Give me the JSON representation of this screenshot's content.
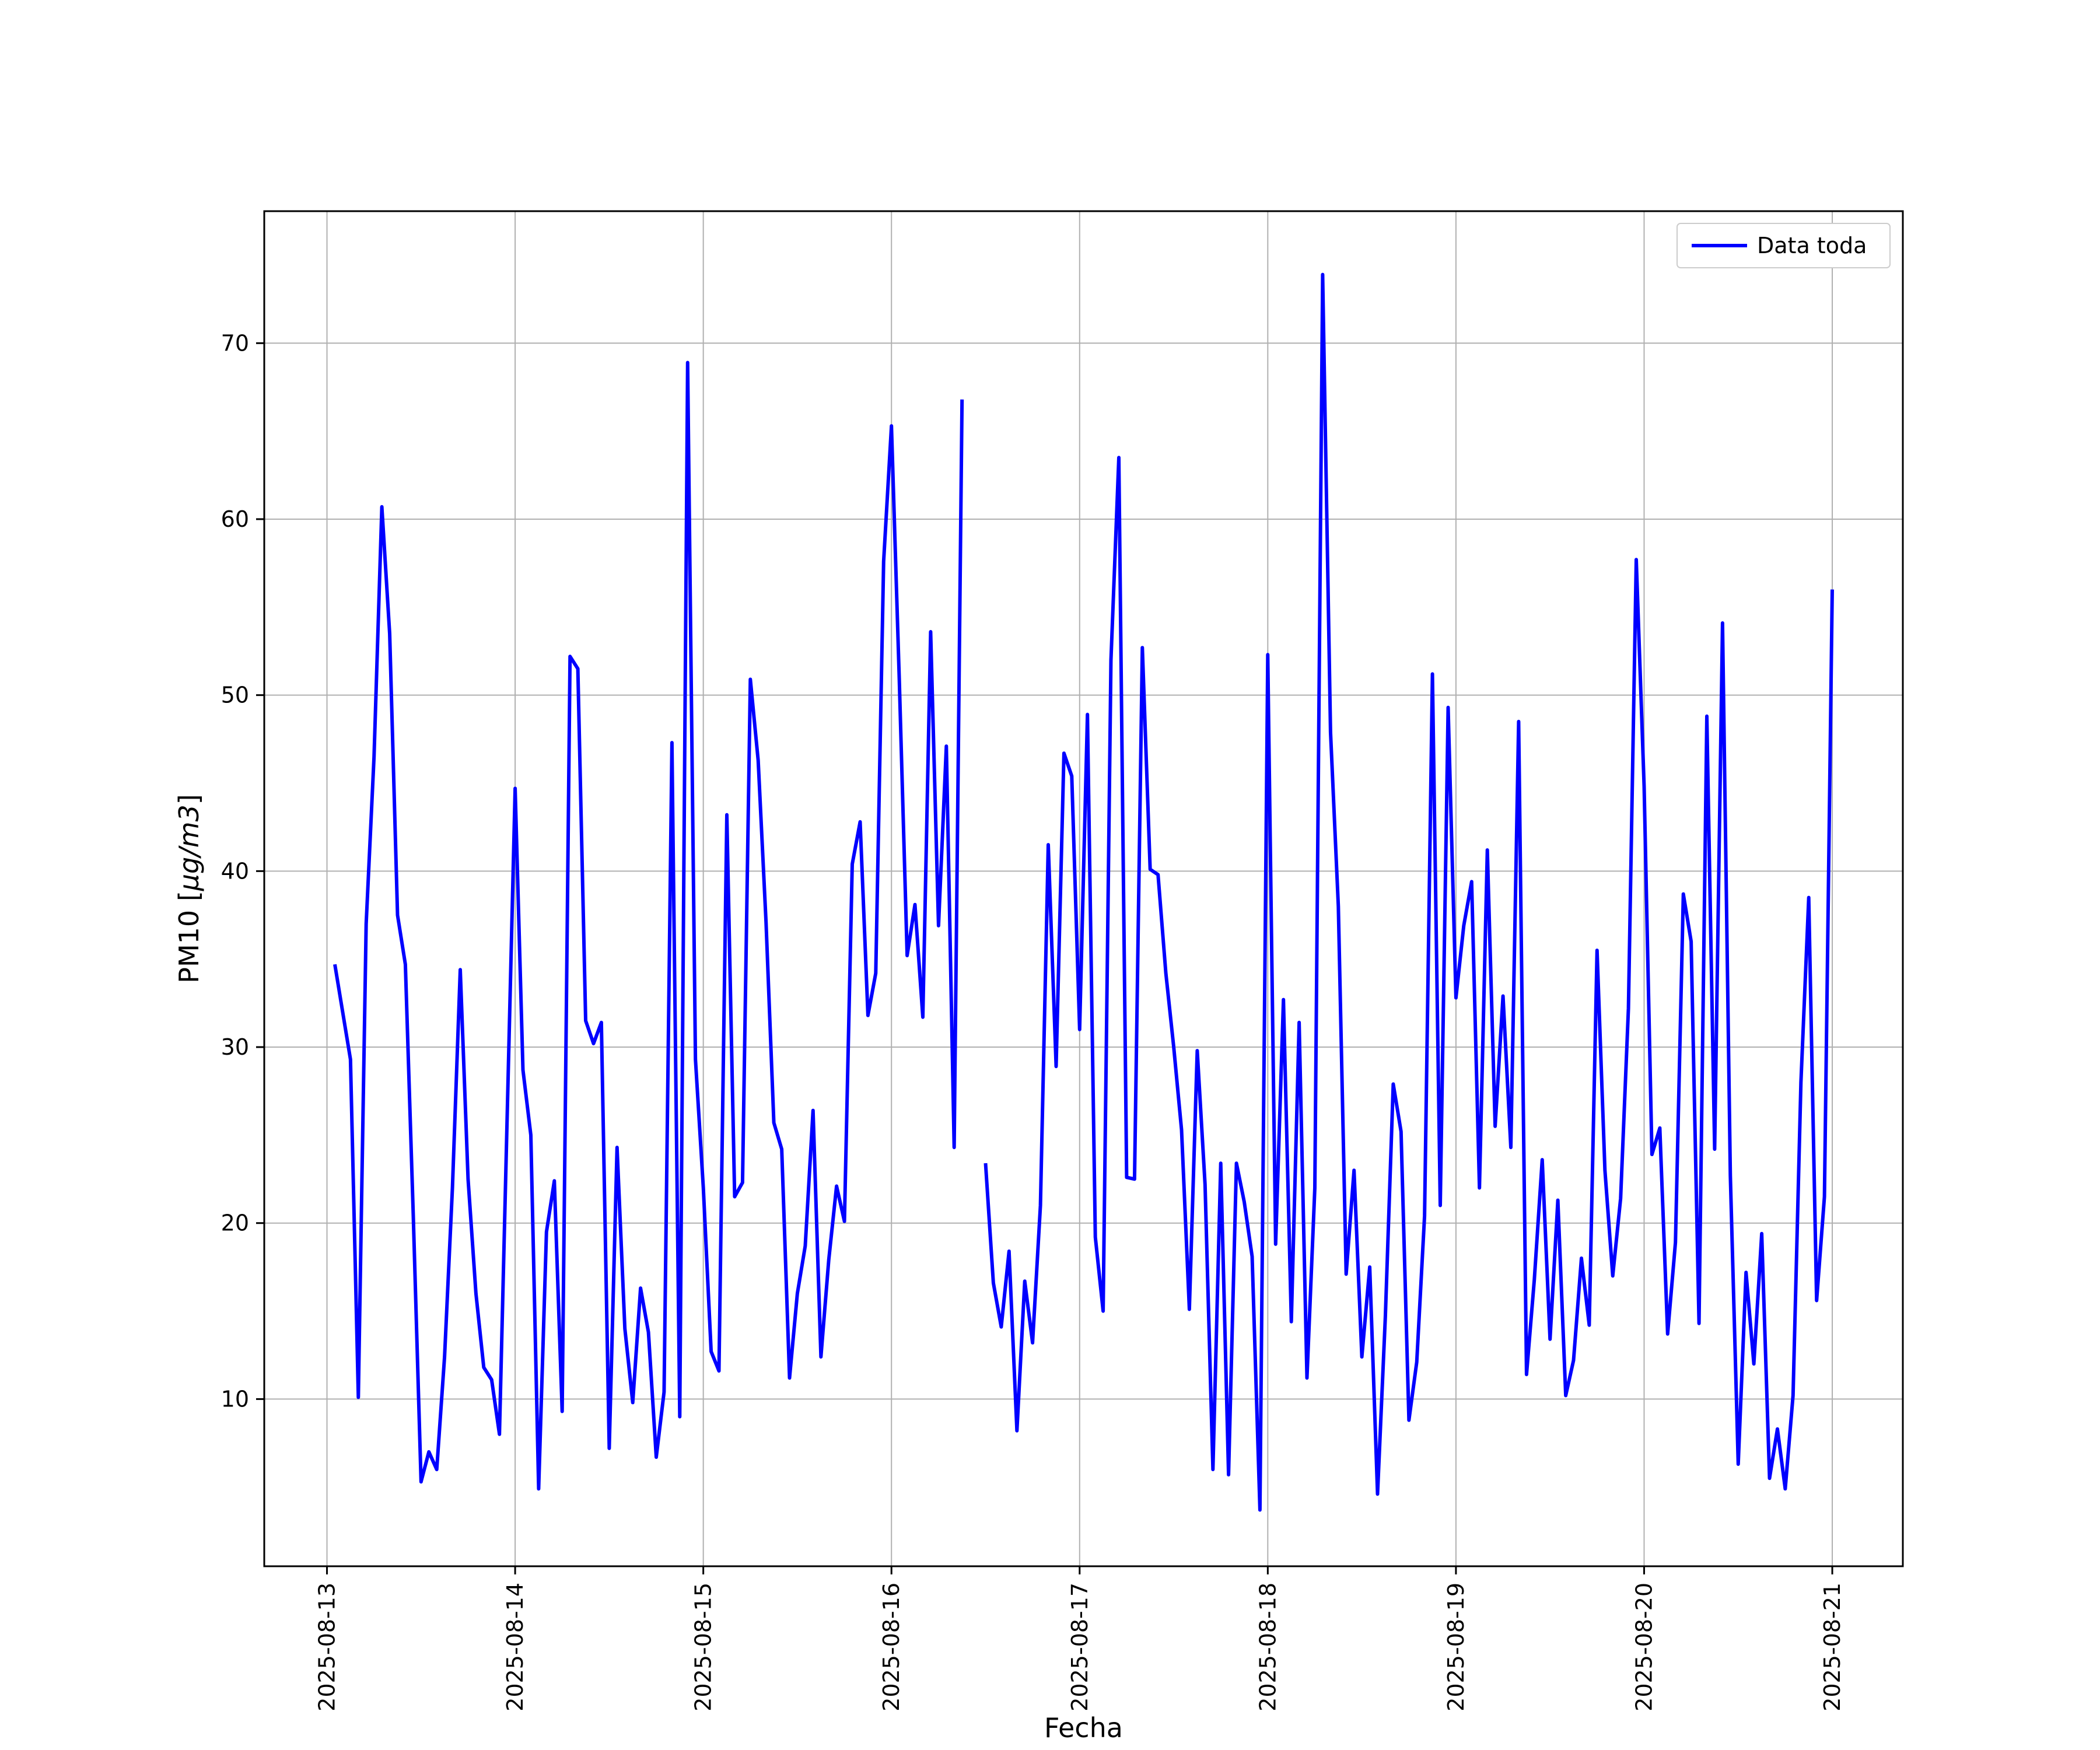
{
  "chart_data": {
    "type": "line",
    "xlabel": "Fecha",
    "ylabel_main": "PM10 [",
    "ylabel_unit": "μg/m3",
    "ylabel_end": "]",
    "grid": true,
    "legend_placement": "top-right",
    "line_color": "#0000ff",
    "x_range": [
      "2025-08-12T16:00",
      "2025-08-21T09:00"
    ],
    "ylim": [
      0.5,
      77.5
    ],
    "x_ticks": [
      "2025-08-13",
      "2025-08-14",
      "2025-08-15",
      "2025-08-16",
      "2025-08-17",
      "2025-08-18",
      "2025-08-19",
      "2025-08-20",
      "2025-08-21"
    ],
    "y_ticks": [
      10,
      20,
      30,
      40,
      50,
      60,
      70
    ],
    "series": [
      {
        "name": "Data toda",
        "points": [
          [
            "2025-08-13T01:00",
            34.7
          ],
          [
            "2025-08-13T03:00",
            29.3
          ],
          [
            "2025-08-13T04:00",
            10.1
          ],
          [
            "2025-08-13T05:00",
            37.0
          ],
          [
            "2025-08-13T06:00",
            46.5
          ],
          [
            "2025-08-13T07:00",
            60.7
          ],
          [
            "2025-08-13T08:00",
            53.5
          ],
          [
            "2025-08-13T09:00",
            37.5
          ],
          [
            "2025-08-13T10:00",
            34.7
          ],
          [
            "2025-08-13T11:00",
            20.5
          ],
          [
            "2025-08-13T12:00",
            5.3
          ],
          [
            "2025-08-13T13:00",
            7.0
          ],
          [
            "2025-08-13T14:00",
            6.0
          ],
          [
            "2025-08-13T15:00",
            12.4
          ],
          [
            "2025-08-13T16:00",
            22.0
          ],
          [
            "2025-08-13T17:00",
            34.4
          ],
          [
            "2025-08-13T18:00",
            22.5
          ],
          [
            "2025-08-13T19:00",
            16.0
          ],
          [
            "2025-08-13T20:00",
            11.8
          ],
          [
            "2025-08-13T21:00",
            11.1
          ],
          [
            "2025-08-13T22:00",
            8.0
          ],
          [
            "2025-08-14T00:00",
            44.7
          ],
          [
            "2025-08-14T01:00",
            28.7
          ],
          [
            "2025-08-14T02:00",
            25.0
          ],
          [
            "2025-08-14T03:00",
            4.9
          ],
          [
            "2025-08-14T04:00",
            19.5
          ],
          [
            "2025-08-14T05:00",
            22.4
          ],
          [
            "2025-08-14T06:00",
            9.3
          ],
          [
            "2025-08-14T07:00",
            52.2
          ],
          [
            "2025-08-14T08:00",
            51.5
          ],
          [
            "2025-08-14T09:00",
            31.5
          ],
          [
            "2025-08-14T10:00",
            30.2
          ],
          [
            "2025-08-14T11:00",
            31.4
          ],
          [
            "2025-08-14T12:00",
            7.2
          ],
          [
            "2025-08-14T13:00",
            24.3
          ],
          [
            "2025-08-14T14:00",
            14.0
          ],
          [
            "2025-08-14T15:00",
            9.8
          ],
          [
            "2025-08-14T16:00",
            16.3
          ],
          [
            "2025-08-14T17:00",
            13.8
          ],
          [
            "2025-08-14T18:00",
            6.7
          ],
          [
            "2025-08-14T19:00",
            10.4
          ],
          [
            "2025-08-14T20:00",
            47.3
          ],
          [
            "2025-08-14T21:00",
            9.0
          ],
          [
            "2025-08-14T22:00",
            68.9
          ],
          [
            "2025-08-14T23:00",
            29.3
          ],
          [
            "2025-08-15T00:00",
            22.0
          ],
          [
            "2025-08-15T01:00",
            12.7
          ],
          [
            "2025-08-15T02:00",
            11.6
          ],
          [
            "2025-08-15T03:00",
            43.2
          ],
          [
            "2025-08-15T04:00",
            21.5
          ],
          [
            "2025-08-15T05:00",
            22.3
          ],
          [
            "2025-08-15T06:00",
            50.9
          ],
          [
            "2025-08-15T07:00",
            46.3
          ],
          [
            "2025-08-15T08:00",
            37.1
          ],
          [
            "2025-08-15T09:00",
            25.7
          ],
          [
            "2025-08-15T10:00",
            24.2
          ],
          [
            "2025-08-15T11:00",
            11.2
          ],
          [
            "2025-08-15T12:00",
            16.0
          ],
          [
            "2025-08-15T13:00",
            18.7
          ],
          [
            "2025-08-15T14:00",
            26.4
          ],
          [
            "2025-08-15T15:00",
            12.4
          ],
          [
            "2025-08-15T16:00",
            17.9
          ],
          [
            "2025-08-15T17:00",
            22.1
          ],
          [
            "2025-08-15T18:00",
            20.1
          ],
          [
            "2025-08-15T19:00",
            40.4
          ],
          [
            "2025-08-15T20:00",
            42.8
          ],
          [
            "2025-08-15T21:00",
            31.8
          ],
          [
            "2025-08-15T22:00",
            34.2
          ],
          [
            "2025-08-15T23:00",
            57.6
          ],
          [
            "2025-08-16T00:00",
            65.3
          ],
          [
            "2025-08-16T01:00",
            50.8
          ],
          [
            "2025-08-16T02:00",
            35.2
          ],
          [
            "2025-08-16T03:00",
            38.1
          ],
          [
            "2025-08-16T04:00",
            31.7
          ],
          [
            "2025-08-16T05:00",
            53.6
          ],
          [
            "2025-08-16T06:00",
            36.9
          ],
          [
            "2025-08-16T07:00",
            47.1
          ],
          [
            "2025-08-16T08:00",
            24.3
          ],
          [
            "2025-08-16T09:00",
            66.8
          ],
          [
            "2025-08-16T10:00",
            null
          ],
          [
            "2025-08-16T11:00",
            null
          ],
          [
            "2025-08-16T12:00",
            23.4
          ],
          [
            "2025-08-16T13:00",
            16.6
          ],
          [
            "2025-08-16T14:00",
            14.1
          ],
          [
            "2025-08-16T15:00",
            18.4
          ],
          [
            "2025-08-16T16:00",
            8.2
          ],
          [
            "2025-08-16T17:00",
            16.7
          ],
          [
            "2025-08-16T18:00",
            13.2
          ],
          [
            "2025-08-16T19:00",
            21.0
          ],
          [
            "2025-08-16T20:00",
            41.5
          ],
          [
            "2025-08-16T21:00",
            28.9
          ],
          [
            "2025-08-16T22:00",
            46.7
          ],
          [
            "2025-08-16T23:00",
            45.4
          ],
          [
            "2025-08-17T00:00",
            31.0
          ],
          [
            "2025-08-17T01:00",
            48.9
          ],
          [
            "2025-08-17T02:00",
            19.2
          ],
          [
            "2025-08-17T03:00",
            15.0
          ],
          [
            "2025-08-17T04:00",
            52.0
          ],
          [
            "2025-08-17T05:00",
            63.5
          ],
          [
            "2025-08-17T06:00",
            22.6
          ],
          [
            "2025-08-17T07:00",
            22.5
          ],
          [
            "2025-08-17T08:00",
            52.7
          ],
          [
            "2025-08-17T09:00",
            40.1
          ],
          [
            "2025-08-17T10:00",
            39.8
          ],
          [
            "2025-08-17T11:00",
            34.2
          ],
          [
            "2025-08-17T12:00",
            30.0
          ],
          [
            "2025-08-17T13:00",
            25.3
          ],
          [
            "2025-08-17T14:00",
            15.1
          ],
          [
            "2025-08-17T15:00",
            29.8
          ],
          [
            "2025-08-17T16:00",
            22.2
          ],
          [
            "2025-08-17T17:00",
            6.0
          ],
          [
            "2025-08-17T18:00",
            23.4
          ],
          [
            "2025-08-17T19:00",
            5.7
          ],
          [
            "2025-08-17T20:00",
            23.4
          ],
          [
            "2025-08-17T21:00",
            21.2
          ],
          [
            "2025-08-17T22:00",
            18.1
          ],
          [
            "2025-08-17T23:00",
            3.7
          ],
          [
            "2025-08-18T00:00",
            52.3
          ],
          [
            "2025-08-18T01:00",
            18.8
          ],
          [
            "2025-08-18T02:00",
            32.7
          ],
          [
            "2025-08-18T03:00",
            14.4
          ],
          [
            "2025-08-18T04:00",
            31.4
          ],
          [
            "2025-08-18T05:00",
            11.2
          ],
          [
            "2025-08-18T06:00",
            22.0
          ],
          [
            "2025-08-18T07:00",
            73.9
          ],
          [
            "2025-08-18T08:00",
            47.9
          ],
          [
            "2025-08-18T09:00",
            38.0
          ],
          [
            "2025-08-18T10:00",
            17.1
          ],
          [
            "2025-08-18T11:00",
            23.0
          ],
          [
            "2025-08-18T12:00",
            12.4
          ],
          [
            "2025-08-18T13:00",
            17.5
          ],
          [
            "2025-08-18T14:00",
            4.6
          ],
          [
            "2025-08-18T15:00",
            14.7
          ],
          [
            "2025-08-18T16:00",
            27.9
          ],
          [
            "2025-08-18T17:00",
            25.2
          ],
          [
            "2025-08-18T18:00",
            8.8
          ],
          [
            "2025-08-18T19:00",
            12.1
          ],
          [
            "2025-08-18T20:00",
            20.4
          ],
          [
            "2025-08-18T21:00",
            51.2
          ],
          [
            "2025-08-18T22:00",
            21.0
          ],
          [
            "2025-08-18T23:00",
            49.3
          ],
          [
            "2025-08-19T00:00",
            32.8
          ],
          [
            "2025-08-19T01:00",
            36.9
          ],
          [
            "2025-08-19T02:00",
            39.4
          ],
          [
            "2025-08-19T03:00",
            22.0
          ],
          [
            "2025-08-19T04:00",
            41.2
          ],
          [
            "2025-08-19T05:00",
            25.5
          ],
          [
            "2025-08-19T06:00",
            32.9
          ],
          [
            "2025-08-19T07:00",
            24.3
          ],
          [
            "2025-08-19T08:00",
            48.5
          ],
          [
            "2025-08-19T09:00",
            11.4
          ],
          [
            "2025-08-19T10:00",
            16.8
          ],
          [
            "2025-08-19T11:00",
            23.6
          ],
          [
            "2025-08-19T12:00",
            13.4
          ],
          [
            "2025-08-19T13:00",
            21.3
          ],
          [
            "2025-08-19T14:00",
            10.2
          ],
          [
            "2025-08-19T15:00",
            12.2
          ],
          [
            "2025-08-19T16:00",
            18.0
          ],
          [
            "2025-08-19T17:00",
            14.2
          ],
          [
            "2025-08-19T18:00",
            35.5
          ],
          [
            "2025-08-19T19:00",
            23.0
          ],
          [
            "2025-08-19T20:00",
            17.0
          ],
          [
            "2025-08-19T21:00",
            21.4
          ],
          [
            "2025-08-19T22:00",
            32.2
          ],
          [
            "2025-08-19T23:00",
            57.7
          ],
          [
            "2025-08-20T00:00",
            44.8
          ],
          [
            "2025-08-20T01:00",
            23.9
          ],
          [
            "2025-08-20T02:00",
            25.4
          ],
          [
            "2025-08-20T03:00",
            13.7
          ],
          [
            "2025-08-20T04:00",
            18.9
          ],
          [
            "2025-08-20T05:00",
            38.7
          ],
          [
            "2025-08-20T06:00",
            36.0
          ],
          [
            "2025-08-20T07:00",
            14.3
          ],
          [
            "2025-08-20T08:00",
            48.8
          ],
          [
            "2025-08-20T09:00",
            24.2
          ],
          [
            "2025-08-20T10:00",
            54.1
          ],
          [
            "2025-08-20T11:00",
            22.7
          ],
          [
            "2025-08-20T12:00",
            6.3
          ],
          [
            "2025-08-20T13:00",
            17.2
          ],
          [
            "2025-08-20T14:00",
            12.0
          ],
          [
            "2025-08-20T15:00",
            19.4
          ],
          [
            "2025-08-20T16:00",
            5.5
          ],
          [
            "2025-08-20T17:00",
            8.3
          ],
          [
            "2025-08-20T18:00",
            4.9
          ],
          [
            "2025-08-20T19:00",
            10.2
          ],
          [
            "2025-08-20T20:00",
            28.0
          ],
          [
            "2025-08-20T21:00",
            38.5
          ],
          [
            "2025-08-20T22:00",
            15.6
          ],
          [
            "2025-08-20T23:00",
            21.5
          ],
          [
            "2025-08-21T00:00",
            56.0
          ]
        ]
      }
    ]
  }
}
